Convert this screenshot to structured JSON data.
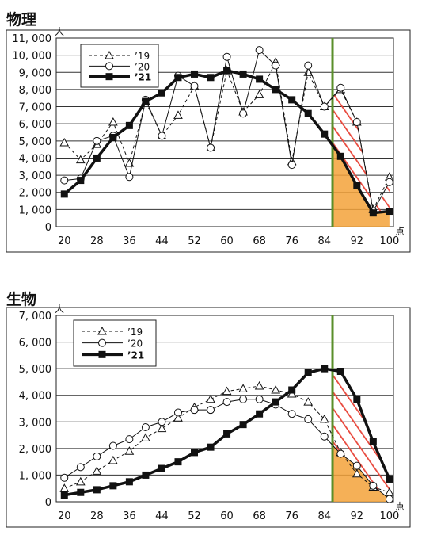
{
  "chart_data": [
    {
      "type": "line",
      "title": "物理",
      "y_unit": "人",
      "x_unit": "点",
      "xlim": [
        18,
        101
      ],
      "ylim": [
        0,
        11000
      ],
      "y_ticks": [
        0,
        1000,
        2000,
        3000,
        4000,
        5000,
        6000,
        7000,
        8000,
        9000,
        10000,
        11000
      ],
      "y_tick_labels": [
        "0",
        "1, 000",
        "2, 000",
        "3, 000",
        "4, 000",
        "5, 000",
        "6, 000",
        "7, 000",
        "8, 000",
        "9, 000",
        "10, 000",
        "11, 000"
      ],
      "x_ticks": [
        20,
        28,
        36,
        44,
        52,
        60,
        68,
        76,
        84,
        92,
        100
      ],
      "x_tick_labels": [
        "20",
        "28",
        "36",
        "44",
        "52",
        "60",
        "68",
        "76",
        "84",
        "92",
        "100"
      ],
      "grid": true,
      "legend_position": "top-left",
      "vline_x": 86,
      "series": [
        {
          "name": "’19",
          "style": "dashed-triangle",
          "x": [
            20,
            24,
            28,
            32,
            36,
            40,
            44,
            48,
            52,
            56,
            60,
            64,
            68,
            72,
            76,
            80,
            84,
            88,
            92,
            96,
            100
          ],
          "values": [
            4900,
            3900,
            4800,
            6100,
            3700,
            7300,
            5300,
            6500,
            8200,
            4600,
            9100,
            6700,
            7700,
            9600,
            3800,
            9000,
            7000,
            8000,
            6100,
            1000,
            2900
          ]
        },
        {
          "name": "’20",
          "style": "solid-circle",
          "x": [
            20,
            24,
            28,
            32,
            36,
            40,
            44,
            48,
            52,
            56,
            60,
            64,
            68,
            72,
            76,
            80,
            84,
            88,
            92,
            96,
            100
          ],
          "values": [
            2700,
            2800,
            5000,
            5300,
            2900,
            7400,
            5300,
            8800,
            8200,
            4600,
            9900,
            6600,
            10300,
            9400,
            3600,
            9400,
            7000,
            8100,
            6100,
            900,
            2600
          ]
        },
        {
          "name": "’21",
          "style": "bold-square",
          "x": [
            20,
            24,
            28,
            32,
            36,
            40,
            44,
            48,
            52,
            56,
            60,
            64,
            68,
            72,
            76,
            80,
            84,
            88,
            92,
            96,
            100
          ],
          "values": [
            1900,
            2700,
            4000,
            5200,
            5900,
            7300,
            7800,
            8700,
            8900,
            8700,
            9100,
            8900,
            8600,
            8000,
            7400,
            6600,
            5400,
            4100,
            2400,
            800,
            900
          ]
        }
      ]
    },
    {
      "type": "line",
      "title": "生物",
      "y_unit": "人",
      "x_unit": "点",
      "xlim": [
        18,
        101
      ],
      "ylim": [
        0,
        7000
      ],
      "y_ticks": [
        0,
        1000,
        2000,
        3000,
        4000,
        5000,
        6000,
        7000
      ],
      "y_tick_labels": [
        "0",
        "1, 000",
        "2, 000",
        "3, 000",
        "4, 000",
        "5, 000",
        "6, 000",
        "7, 000"
      ],
      "x_ticks": [
        20,
        28,
        36,
        44,
        52,
        60,
        68,
        76,
        84,
        92,
        100
      ],
      "x_tick_labels": [
        "20",
        "28",
        "36",
        "44",
        "52",
        "60",
        "68",
        "76",
        "84",
        "92",
        "100"
      ],
      "grid": true,
      "legend_position": "top-left",
      "vline_x": 86,
      "series": [
        {
          "name": "’19",
          "style": "dashed-triangle",
          "x": [
            20,
            24,
            28,
            32,
            36,
            40,
            44,
            48,
            52,
            56,
            60,
            64,
            68,
            72,
            76,
            80,
            84,
            88,
            92,
            96,
            100
          ],
          "values": [
            500,
            750,
            1150,
            1550,
            1900,
            2400,
            2750,
            3150,
            3550,
            3850,
            4150,
            4250,
            4350,
            4200,
            4050,
            3750,
            3100,
            1850,
            1050,
            550,
            350
          ]
        },
        {
          "name": "’20",
          "style": "solid-circle",
          "x": [
            20,
            24,
            28,
            32,
            36,
            40,
            44,
            48,
            52,
            56,
            60,
            64,
            68,
            72,
            76,
            80,
            84,
            88,
            92,
            96,
            100
          ],
          "values": [
            900,
            1300,
            1700,
            2100,
            2350,
            2800,
            3000,
            3350,
            3450,
            3450,
            3750,
            3850,
            3850,
            3650,
            3300,
            3100,
            2450,
            1800,
            1350,
            600,
            100
          ]
        },
        {
          "name": "’21",
          "style": "bold-square",
          "x": [
            20,
            24,
            28,
            32,
            36,
            40,
            44,
            48,
            52,
            56,
            60,
            64,
            68,
            72,
            76,
            80,
            84,
            88,
            92,
            96,
            100
          ],
          "values": [
            250,
            350,
            450,
            600,
            750,
            1000,
            1250,
            1500,
            1850,
            2050,
            2550,
            2900,
            3300,
            3750,
            4200,
            4850,
            5000,
            4900,
            3850,
            2250,
            850
          ]
        }
      ]
    }
  ]
}
